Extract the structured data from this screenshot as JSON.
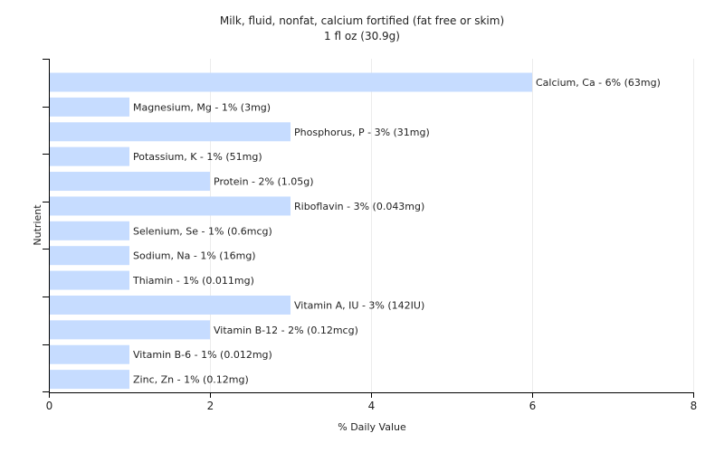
{
  "chart_data": {
    "type": "bar",
    "orientation": "horizontal",
    "title": "Milk, fluid, nonfat, calcium fortified (fat free or skim)",
    "subtitle": "1 fl oz (30.9g)",
    "xlabel": "% Daily Value",
    "ylabel": "Nutrient",
    "xlim": [
      0,
      8
    ],
    "xticks": [
      0,
      2,
      4,
      6,
      8
    ],
    "grid": true,
    "colors": {
      "bar": "#c6dcff"
    },
    "categories": [
      "Calcium, Ca",
      "Magnesium, Mg",
      "Phosphorus, P",
      "Potassium, K",
      "Protein",
      "Riboflavin",
      "Selenium, Se",
      "Sodium, Na",
      "Thiamin",
      "Vitamin A, IU",
      "Vitamin B-12",
      "Vitamin B-6",
      "Zinc, Zn"
    ],
    "values": [
      6,
      1,
      3,
      1,
      2,
      3,
      1,
      1,
      1,
      3,
      2,
      1,
      1
    ],
    "labels": [
      "Calcium, Ca - 6% (63mg)",
      "Magnesium, Mg - 1% (3mg)",
      "Phosphorus, P - 3% (31mg)",
      "Potassium, K - 1% (51mg)",
      "Protein - 2% (1.05g)",
      "Riboflavin - 3% (0.043mg)",
      "Selenium, Se - 1% (0.6mcg)",
      "Sodium, Na - 1% (16mg)",
      "Thiamin - 1% (0.011mg)",
      "Vitamin A, IU - 3% (142IU)",
      "Vitamin B-12 - 2% (0.12mcg)",
      "Vitamin B-6 - 1% (0.012mg)",
      "Zinc, Zn - 1% (0.12mg)"
    ]
  }
}
